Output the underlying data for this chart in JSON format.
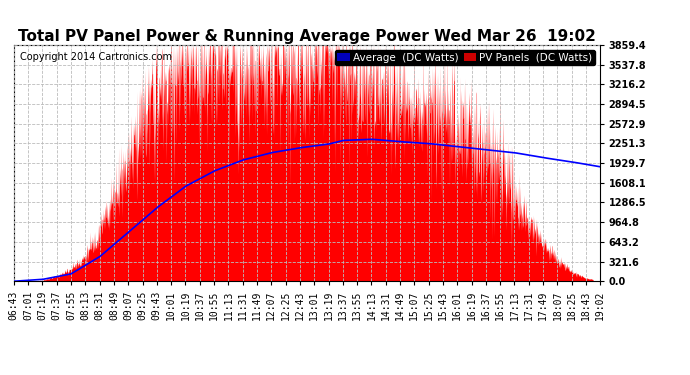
{
  "title": "Total PV Panel Power & Running Average Power Wed Mar 26  19:02",
  "copyright": "Copyright 2014 Cartronics.com",
  "legend_avg": "Average  (DC Watts)",
  "legend_pv": "PV Panels  (DC Watts)",
  "legend_avg_bg": "#0000bb",
  "legend_pv_bg": "#cc0000",
  "avg_line_color": "#0000ff",
  "pv_fill_color": "#ff0000",
  "background_color": "#ffffff",
  "grid_color": "#bbbbbb",
  "ytick_labels": [
    "0.0",
    "321.6",
    "643.2",
    "964.8",
    "1286.5",
    "1608.1",
    "1929.7",
    "2251.3",
    "2572.9",
    "2894.5",
    "3216.2",
    "3537.8",
    "3859.4"
  ],
  "ytick_values": [
    0.0,
    321.6,
    643.2,
    964.8,
    1286.5,
    1608.1,
    1929.7,
    2251.3,
    2572.9,
    2894.5,
    3216.2,
    3537.8,
    3859.4
  ],
  "ymax": 3859.4,
  "ymin": 0.0,
  "xtick_labels": [
    "06:43",
    "07:01",
    "07:19",
    "07:37",
    "07:55",
    "08:13",
    "08:31",
    "08:49",
    "09:07",
    "09:25",
    "09:43",
    "10:01",
    "10:19",
    "10:37",
    "10:55",
    "11:13",
    "11:31",
    "11:49",
    "12:07",
    "12:25",
    "12:43",
    "13:01",
    "13:19",
    "13:37",
    "13:55",
    "14:13",
    "14:31",
    "14:49",
    "15:07",
    "15:25",
    "15:43",
    "16:01",
    "16:19",
    "16:37",
    "16:55",
    "17:13",
    "17:31",
    "17:49",
    "18:07",
    "18:25",
    "18:43",
    "19:02"
  ],
  "title_fontsize": 11,
  "copyright_fontsize": 7,
  "tick_fontsize": 7,
  "legend_fontsize": 7.5
}
